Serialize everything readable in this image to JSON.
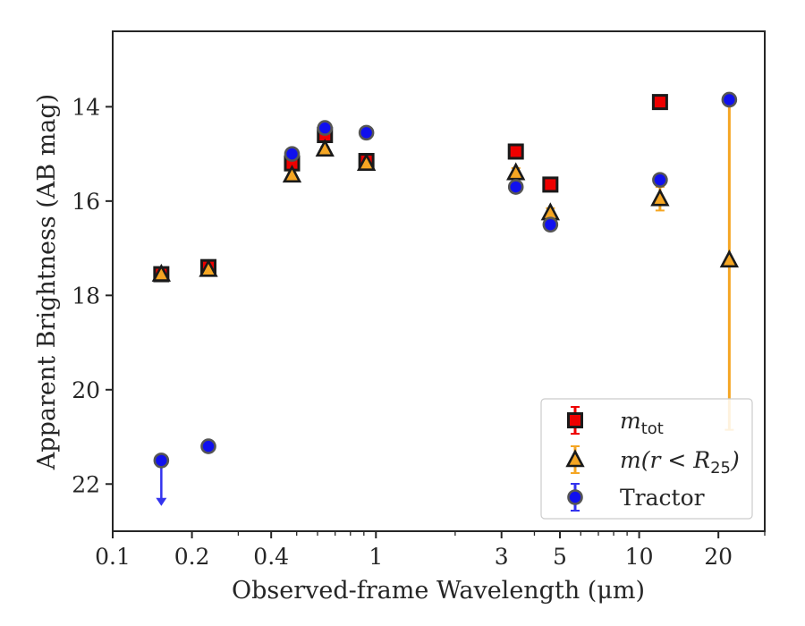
{
  "chart_data": {
    "type": "scatter",
    "title": "",
    "xlabel": "Observed-frame Wavelength (μm)",
    "ylabel": "Apparent Brightness (AB mag)",
    "xscale": "log",
    "xlim": [
      0.1,
      30
    ],
    "ylim": [
      23,
      12.4
    ],
    "y_inverted": true,
    "xticks": [
      {
        "value": 0.1,
        "label": "0.1"
      },
      {
        "value": 0.2,
        "label": "0.2"
      },
      {
        "value": 0.4,
        "label": "0.4"
      },
      {
        "value": 1,
        "label": "1"
      },
      {
        "value": 3,
        "label": "3"
      },
      {
        "value": 5,
        "label": "5"
      },
      {
        "value": 10,
        "label": "10"
      },
      {
        "value": 20,
        "label": "20"
      }
    ],
    "yticks": [
      {
        "value": 14,
        "label": "14"
      },
      {
        "value": 16,
        "label": "16"
      },
      {
        "value": 18,
        "label": "18"
      },
      {
        "value": 20,
        "label": "20"
      },
      {
        "value": 22,
        "label": "22"
      }
    ],
    "legend_position": "lower-right",
    "series": [
      {
        "name": "m_tot",
        "legend_main": "m",
        "legend_sub": "tot",
        "marker": "square",
        "color": "#ee0000",
        "errcolor": "#ee0000",
        "points": [
          {
            "x": 0.153,
            "y": 17.55,
            "err": 0.05
          },
          {
            "x": 0.231,
            "y": 17.4,
            "err": 0.05
          },
          {
            "x": 0.48,
            "y": 15.2,
            "err": 0.05
          },
          {
            "x": 0.64,
            "y": 14.6,
            "err": 0.05
          },
          {
            "x": 0.92,
            "y": 15.15,
            "err": 0.05
          },
          {
            "x": 3.4,
            "y": 14.95,
            "err": 0.05
          },
          {
            "x": 4.6,
            "y": 15.65,
            "err": 0.05
          },
          {
            "x": 12.0,
            "y": 13.9,
            "err": 0.05
          }
        ]
      },
      {
        "name": "m(r < R_25)",
        "legend_main": "m(r < R",
        "legend_sub": "25",
        "legend_end": ")",
        "marker": "triangle",
        "color": "#f5a623",
        "errcolor": "#f5a623",
        "points": [
          {
            "x": 0.153,
            "y": 17.55,
            "err": 0.05
          },
          {
            "x": 0.231,
            "y": 17.45,
            "err": 0.05
          },
          {
            "x": 0.48,
            "y": 15.45,
            "err": 0.05
          },
          {
            "x": 0.64,
            "y": 14.9,
            "err": 0.05
          },
          {
            "x": 0.92,
            "y": 15.2,
            "err": 0.05
          },
          {
            "x": 3.4,
            "y": 15.4,
            "err": 0.1
          },
          {
            "x": 4.6,
            "y": 16.25,
            "err": 0.1
          },
          {
            "x": 12.0,
            "y": 15.95,
            "err": 0.25
          },
          {
            "x": 22.0,
            "y": 17.25,
            "err_lo": 3.6,
            "err_hi": 3.5
          }
        ]
      },
      {
        "name": "Tractor",
        "legend_main": "Tractor",
        "marker": "circle",
        "color": "#1010ee",
        "errcolor": "#3333ee",
        "points": [
          {
            "x": 0.153,
            "y": 21.5,
            "upper_limit": true
          },
          {
            "x": 0.231,
            "y": 21.2,
            "err": 0.05
          },
          {
            "x": 0.48,
            "y": 15.0,
            "err": 0.05
          },
          {
            "x": 0.64,
            "y": 14.45,
            "err": 0.05
          },
          {
            "x": 0.92,
            "y": 14.55,
            "err": 0.05
          },
          {
            "x": 3.4,
            "y": 15.7,
            "err": 0.05
          },
          {
            "x": 4.6,
            "y": 16.5,
            "err": 0.05
          },
          {
            "x": 12.0,
            "y": 15.55,
            "err": 0.05
          },
          {
            "x": 22.0,
            "y": 13.85,
            "err": 0.05
          }
        ]
      }
    ]
  }
}
